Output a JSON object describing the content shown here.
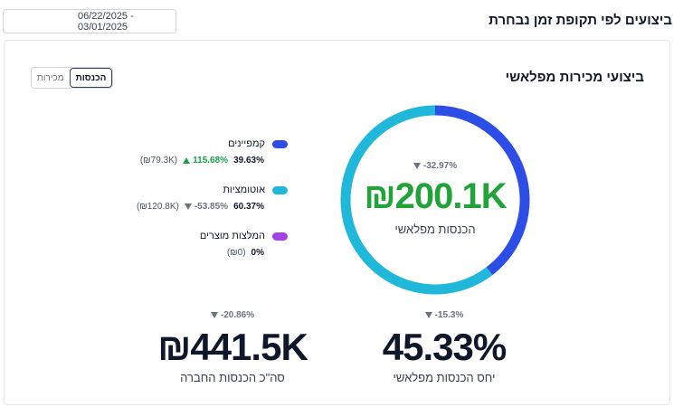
{
  "header": {
    "title": "ביצועים לפי תקופת זמן נבחרת",
    "date_range": "06/22/2025 - 03/01/2025"
  },
  "card": {
    "title": "ביצועי מכירות מפלאשי",
    "toggle": {
      "options": [
        "הכנסות",
        "מכירות"
      ],
      "selected": "הכנסות"
    },
    "donut": {
      "change": "-32.97%",
      "change_direction": "down",
      "value": "₪200.1K",
      "label": "הכנסות מפלאשי"
    },
    "legend": [
      {
        "name": "קמפיינים",
        "color": "#2d4ee6",
        "share": "39.63%",
        "change": "115.68%",
        "direction": "up",
        "amount": "(₪79.3K)"
      },
      {
        "name": "אוטומציות",
        "color": "#1fb8db",
        "share": "60.37%",
        "change": "-53.85%",
        "direction": "down",
        "amount": "(₪120.8K)"
      },
      {
        "name": "המלצות מוצרים",
        "color": "#a142e6",
        "share": "0%",
        "change": "",
        "direction": "",
        "amount": "(₪0)"
      }
    ],
    "stats": {
      "ratio": {
        "change": "-15.3%",
        "value": "45.33%",
        "label": "יחס הכנסות מפלאשי"
      },
      "total": {
        "change": "-20.86%",
        "value": "₪441.5K",
        "label": "סה\"כ הכנסות החברה"
      }
    }
  },
  "chart_data": {
    "type": "pie",
    "categories": [
      "קמפיינים",
      "אוטומציות",
      "המלצות מוצרים"
    ],
    "values": [
      39.63,
      60.37,
      0
    ],
    "colors": [
      "#2d4ee6",
      "#1fb8db",
      "#a142e6"
    ],
    "style": "donut"
  }
}
